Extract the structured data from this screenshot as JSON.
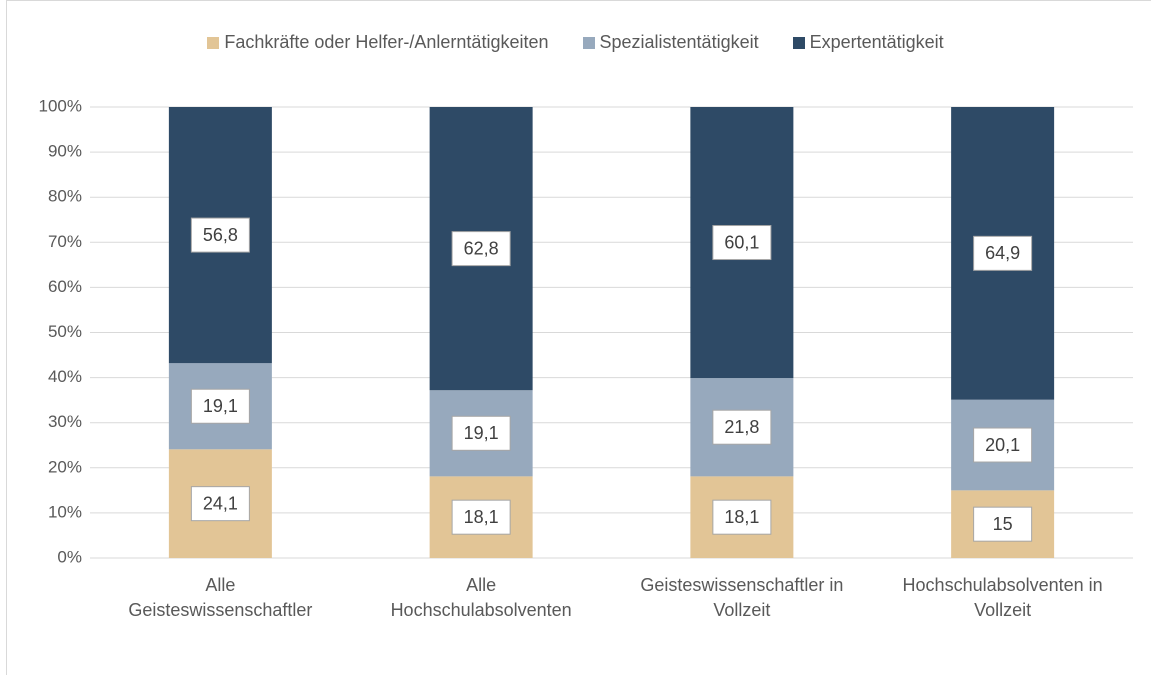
{
  "chart_data": {
    "type": "stacked_bar",
    "categories": [
      "Alle\nGeisteswissenschaftler",
      "Alle\nHochschulabsolventen",
      "Geisteswissenschaftler in\nVollzeit",
      "Hochschulabsolventen in\nVollzeit"
    ],
    "series": [
      {
        "name": "Fachkräfte oder Helfer-/Anlerntätigkeiten",
        "color": "#e2c596",
        "values": [
          24.1,
          18.1,
          18.1,
          15
        ],
        "value_labels": [
          "24,1",
          "18,1",
          "18,1",
          "15"
        ]
      },
      {
        "name": "Spezialistentätigkeit",
        "color": "#97a9bd",
        "values": [
          19.1,
          19.1,
          21.8,
          20.1
        ],
        "value_labels": [
          "19,1",
          "19,1",
          "21,8",
          "20,1"
        ]
      },
      {
        "name": "Expertentätigkeit",
        "color": "#2e4a66",
        "values": [
          56.8,
          62.8,
          60.1,
          64.9
        ],
        "value_labels": [
          "56,8",
          "62,8",
          "60,1",
          "64,9"
        ]
      }
    ],
    "ylim": [
      0,
      100
    ],
    "yticks": [
      {
        "value": 0,
        "label": "0%"
      },
      {
        "value": 10,
        "label": "10%"
      },
      {
        "value": 20,
        "label": "20%"
      },
      {
        "value": 30,
        "label": "30%"
      },
      {
        "value": 40,
        "label": "40%"
      },
      {
        "value": 50,
        "label": "50%"
      },
      {
        "value": 60,
        "label": "60%"
      },
      {
        "value": 70,
        "label": "70%"
      },
      {
        "value": 80,
        "label": "80%"
      },
      {
        "value": 90,
        "label": "90%"
      },
      {
        "value": 100,
        "label": "100%"
      }
    ],
    "grid": true,
    "legend": "top"
  }
}
